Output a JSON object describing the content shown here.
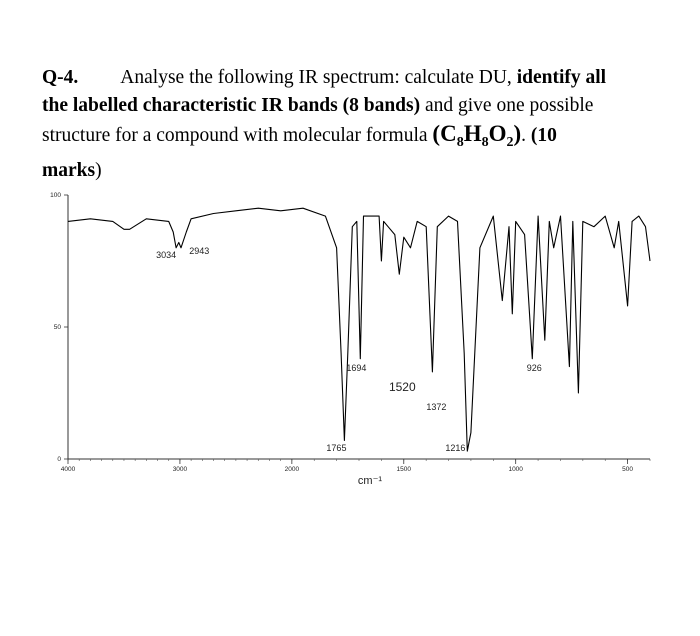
{
  "question": {
    "lines": [
      [
        {
          "text": "Q-4.",
          "bold": true
        },
        {
          "text": "Analyse the following IR spectrum: calculate DU, "
        },
        {
          "text": "identify all",
          "bold": true
        }
      ],
      [
        {
          "text": "the labelled characteristic IR bands (8 bands)",
          "bold": true
        },
        {
          "text": " and give one possible"
        }
      ],
      [
        {
          "text": "structure for a compound with molecular formula "
        },
        {
          "text": "(C",
          "bold": true,
          "big": true
        },
        {
          "text": "8",
          "bold": true,
          "sub": true
        },
        {
          "text": "H",
          "bold": true,
          "big": true
        },
        {
          "text": "8",
          "bold": true,
          "sub": true
        },
        {
          "text": "O",
          "bold": true,
          "big": true
        },
        {
          "text": "2",
          "bold": true,
          "sub": true
        },
        {
          "text": ")",
          "bold": true,
          "big": true
        },
        {
          "text": ". "
        },
        {
          "text": "(10",
          "bold": true
        }
      ],
      [
        {
          "text": "marks",
          "bold": true
        },
        {
          "text": ")"
        }
      ]
    ]
  },
  "chart_data": {
    "type": "line",
    "color": "#000000",
    "xlabel": "cm⁻¹",
    "xlim": [
      4000,
      400
    ],
    "x_break": 2000,
    "x_break_factor": 2,
    "xticks": [
      4000,
      3000,
      2000,
      1500,
      1000,
      500
    ],
    "ylim": [
      0,
      100
    ],
    "yticks": [
      0,
      50,
      100
    ],
    "x": [
      4000,
      3800,
      3600,
      3500,
      3450,
      3300,
      3100,
      3060,
      3034,
      3010,
      2990,
      2943,
      2900,
      2700,
      2500,
      2300,
      2100,
      1950,
      1850,
      1800,
      1780,
      1765,
      1750,
      1730,
      1710,
      1694,
      1680,
      1640,
      1610,
      1600,
      1590,
      1570,
      1540,
      1520,
      1500,
      1470,
      1440,
      1400,
      1372,
      1350,
      1300,
      1260,
      1230,
      1216,
      1200,
      1160,
      1100,
      1060,
      1030,
      1015,
      1000,
      960,
      926,
      900,
      870,
      850,
      830,
      800,
      760,
      745,
      720,
      700,
      650,
      600,
      560,
      540,
      500,
      480,
      450,
      420,
      400
    ],
    "values": [
      90,
      91,
      90,
      87,
      87,
      91,
      90,
      86,
      80,
      82,
      80,
      86,
      91,
      93,
      94,
      95,
      94,
      95,
      92,
      80,
      40,
      7,
      40,
      88,
      90,
      38,
      92,
      92,
      92,
      75,
      90,
      88,
      85,
      70,
      84,
      80,
      90,
      88,
      33,
      88,
      92,
      90,
      40,
      3,
      10,
      80,
      92,
      60,
      88,
      55,
      90,
      85,
      38,
      92,
      45,
      90,
      80,
      92,
      35,
      90,
      25,
      90,
      88,
      92,
      80,
      90,
      58,
      90,
      92,
      88,
      75
    ],
    "peak_labels": [
      3034,
      2943,
      1765,
      1694,
      1520,
      1372,
      1216,
      926
    ]
  }
}
